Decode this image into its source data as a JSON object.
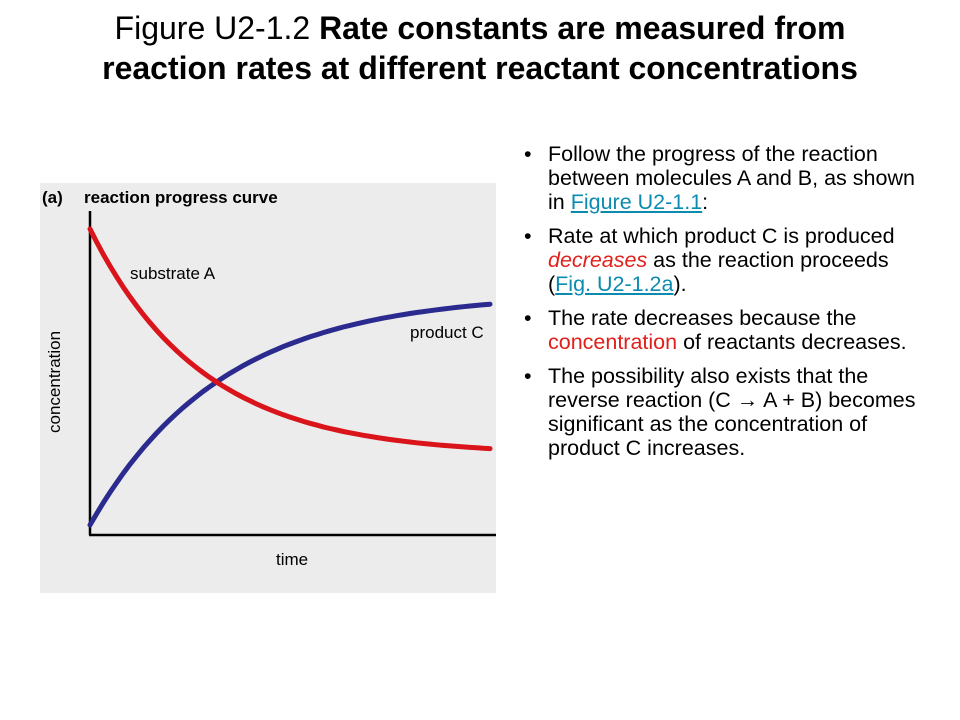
{
  "title": {
    "prefix": "Figure U2-1.2 ",
    "bold": "Rate constants are measured from reaction rates at different reactant concentrations"
  },
  "figure": {
    "panel_label": "(a)",
    "panel_title": "reaction progress curve",
    "ylabel": "concentration",
    "xlabel": "time",
    "label_substrate": "substrate A",
    "label_product": "product C",
    "colors": {
      "substrate": "#d9141b",
      "product": "#2b2a8f",
      "axis": "#000000"
    }
  },
  "chart_data": {
    "type": "line",
    "title": "reaction progress curve",
    "xlabel": "time",
    "ylabel": "concentration",
    "grid": false,
    "series": [
      {
        "name": "substrate A",
        "shape": "exponential decay",
        "color": "#d9141b"
      },
      {
        "name": "product C",
        "shape": "exponential rise",
        "color": "#2b2a8f"
      }
    ]
  },
  "bullets": [
    {
      "parts": [
        {
          "text": "Follow the progress of the reaction between molecules A and B, as shown in ",
          "style": "plain"
        },
        {
          "text": "Figure U2-1.1",
          "style": "link"
        },
        {
          "text": ":",
          "style": "plain"
        }
      ]
    },
    {
      "parts": [
        {
          "text": "Rate at which product C is produced ",
          "style": "plain"
        },
        {
          "text": "decreases",
          "style": "red-italic"
        },
        {
          "text": " as the reaction proceeds (",
          "style": "plain"
        },
        {
          "text": "Fig. U2-1.2a",
          "style": "link"
        },
        {
          "text": ").",
          "style": "plain"
        }
      ]
    },
    {
      "parts": [
        {
          "text": "The rate decreases because the ",
          "style": "plain"
        },
        {
          "text": "concentration",
          "style": "red"
        },
        {
          "text": " of reactants decreases.",
          "style": "plain"
        }
      ]
    },
    {
      "parts": [
        {
          "text": "The possibility also exists that the reverse reaction (C → A + B) becomes significant as the concentration of product C increases.",
          "style": "plain"
        }
      ]
    }
  ]
}
